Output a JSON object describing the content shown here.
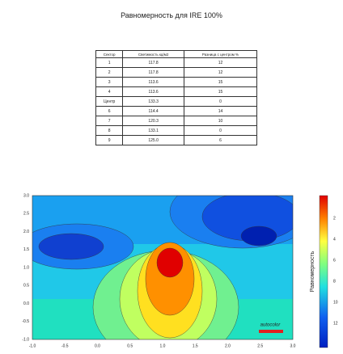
{
  "title": "Равномерность для IRE 100%",
  "table": {
    "headers": [
      "Сектор",
      "Светимость кд/м2",
      "Разница с центром %"
    ],
    "rows": [
      [
        "1",
        "117.8",
        "12"
      ],
      [
        "2",
        "117.8",
        "12"
      ],
      [
        "3",
        "113.6",
        "15"
      ],
      [
        "4",
        "113.6",
        "15"
      ],
      [
        "Центр",
        "133.3",
        "0"
      ],
      [
        "6",
        "114.4",
        "14"
      ],
      [
        "7",
        "120.3",
        "10"
      ],
      [
        "8",
        "133.1",
        "0"
      ],
      [
        "9",
        "125.0",
        "6"
      ]
    ]
  },
  "plot": {
    "xticks": [
      "-1.0",
      "-0.5",
      "0.0",
      "0.5",
      "1.0",
      "1.5",
      "2.0",
      "2.5",
      "3.0"
    ],
    "yticks": [
      "3.0",
      "2.5",
      "2.0",
      "1.5",
      "1.0",
      "0.5",
      "0.0",
      "-0.5",
      "-1.0"
    ],
    "watermark": "autocolor",
    "colorbar_label": "Равномерность",
    "colorbar_ticks": [
      "2",
      "4",
      "6",
      "8",
      "10",
      "12"
    ]
  }
}
